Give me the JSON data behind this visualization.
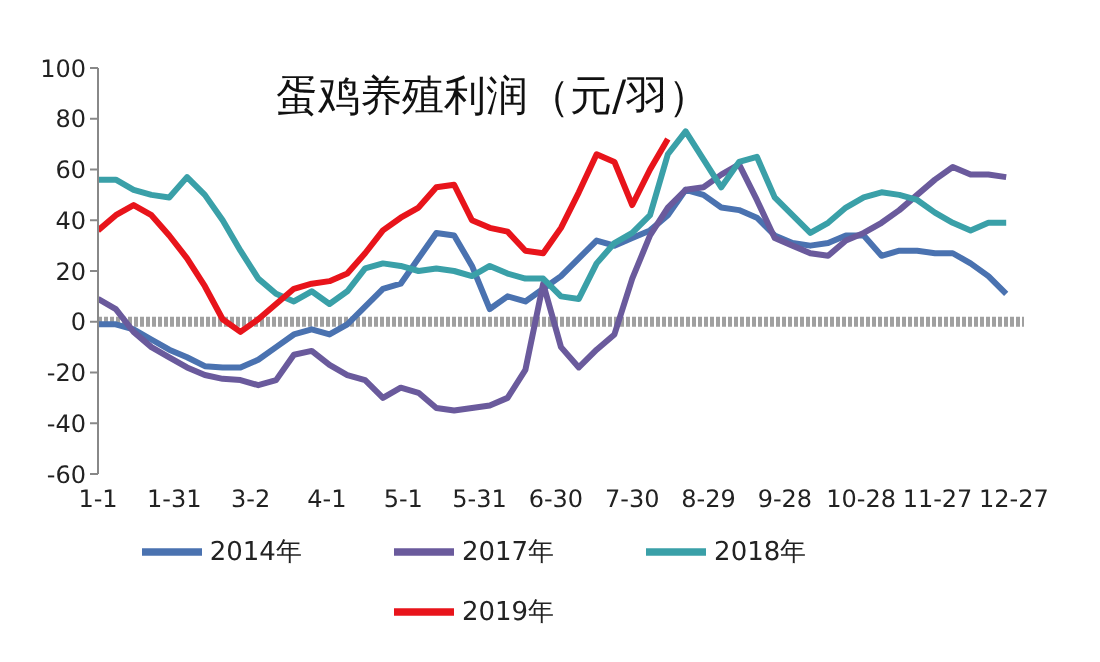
{
  "chart_data": {
    "type": "line",
    "title": "蛋鸡养殖利润（元/羽）",
    "x": [
      "--01-01",
      "--01-08",
      "--01-15",
      "--01-22",
      "--01-29",
      "--02-05",
      "--02-12",
      "--02-19",
      "--02-26",
      "--03-05",
      "--03-12",
      "--03-19",
      "--03-26",
      "--04-02",
      "--04-09",
      "--04-16",
      "--04-23",
      "--04-30",
      "--05-07",
      "--05-14",
      "--05-21",
      "--05-28",
      "--06-04",
      "--06-11",
      "--06-18",
      "--06-25",
      "--07-02",
      "--07-09",
      "--07-16",
      "--07-23",
      "--07-30",
      "--08-06",
      "--08-13",
      "--08-20",
      "--08-27",
      "--09-03",
      "--09-10",
      "--09-17",
      "--09-24",
      "--10-01",
      "--10-08",
      "--10-15",
      "--10-22",
      "--10-29",
      "--11-05",
      "--11-12",
      "--11-19",
      "--11-26",
      "--12-03",
      "--12-10",
      "--12-17",
      "--12-24"
    ],
    "series": [
      {
        "name": "2014年",
        "color": "#4a72b0",
        "values": [
          -1,
          -1,
          -3,
          -7,
          -11,
          -14,
          -17.5,
          -18,
          -18,
          -15,
          -10,
          -5,
          -3,
          -5,
          -1,
          6,
          13,
          15,
          25,
          35,
          34,
          22,
          5,
          10,
          8,
          13,
          18,
          25,
          32,
          30,
          33,
          36,
          42,
          52,
          50,
          45,
          44,
          41,
          34,
          31,
          30,
          31,
          34,
          34,
          26,
          28,
          28,
          27,
          27,
          23,
          18,
          11
        ]
      },
      {
        "name": "2017年",
        "color": "#6a5a9c",
        "values": [
          9,
          5,
          -4,
          -10,
          -14,
          -18,
          -21,
          -22.5,
          -23,
          -25,
          -23,
          -13,
          -11.5,
          -17,
          -21,
          -23,
          -30,
          -26,
          -28,
          -34,
          -35,
          -34,
          -33,
          -30,
          -19,
          15,
          -10,
          -18,
          -11,
          -5,
          17,
          34,
          45,
          52,
          53,
          58,
          62,
          48,
          33,
          30,
          27,
          26,
          32,
          35,
          39,
          44,
          50,
          56,
          61,
          58,
          58,
          57
        ]
      },
      {
        "name": "2018年",
        "color": "#3aa0a8",
        "values": [
          56,
          56,
          52,
          50,
          49,
          57,
          50,
          40,
          28,
          17,
          11,
          8,
          12,
          7,
          12,
          21,
          23,
          22,
          20,
          21,
          20,
          18,
          22,
          19,
          17,
          17,
          10,
          9,
          23,
          31,
          35,
          42,
          66,
          75,
          64,
          53,
          63,
          65,
          49,
          42,
          35,
          39,
          45,
          49,
          51,
          50,
          48,
          43,
          39,
          36,
          39,
          39
        ]
      },
      {
        "name": "2019年",
        "color": "#e8141b",
        "values": [
          36,
          42,
          46,
          42,
          34,
          25,
          14,
          1,
          -4,
          1,
          7,
          13,
          15,
          16,
          19,
          27,
          36,
          41,
          45,
          53,
          54,
          40,
          37,
          35.5,
          28,
          27,
          37,
          51,
          66,
          63,
          46,
          60,
          72,
          null,
          null,
          null,
          null,
          null,
          null,
          null,
          null,
          null,
          null,
          null,
          null,
          null,
          null,
          null,
          null,
          null,
          null,
          null
        ]
      }
    ],
    "xlim": [
      "--01-01",
      "--12-31"
    ],
    "xticks": [
      {
        "value": "--01-01",
        "label": "1-1"
      },
      {
        "value": "--01-31",
        "label": "1-31"
      },
      {
        "value": "--03-02",
        "label": "3-2"
      },
      {
        "value": "--04-01",
        "label": "4-1"
      },
      {
        "value": "--05-01",
        "label": "5-1"
      },
      {
        "value": "--05-31",
        "label": "5-31"
      },
      {
        "value": "--06-30",
        "label": "6-30"
      },
      {
        "value": "--07-30",
        "label": "7-30"
      },
      {
        "value": "--08-29",
        "label": "8-29"
      },
      {
        "value": "--09-28",
        "label": "9-28"
      },
      {
        "value": "--10-28",
        "label": "10-28"
      },
      {
        "value": "--11-27",
        "label": "11-27"
      },
      {
        "value": "--12-27",
        "label": "12-27"
      }
    ],
    "ylim": [
      -60,
      100
    ],
    "yticks": [
      -60,
      -40,
      -20,
      0,
      20,
      40,
      60,
      80,
      100
    ],
    "ref_lines": [
      {
        "axis": "y",
        "value": 0,
        "color": "#a0a0a0"
      }
    ],
    "grid": false,
    "legend": "bottom",
    "marker": "none",
    "line_style": "solid"
  }
}
